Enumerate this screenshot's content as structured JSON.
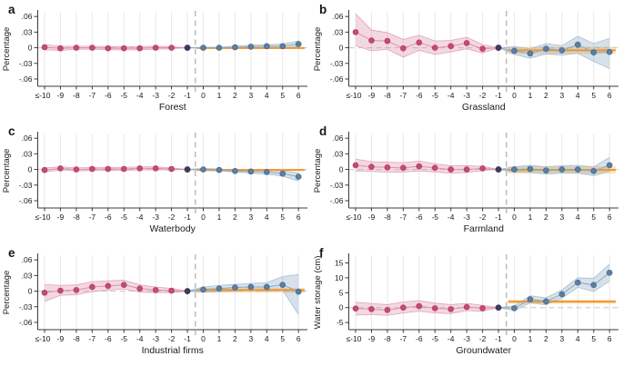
{
  "colors": {
    "background": "#ffffff",
    "axis": "#3a3a3a",
    "text": "#1a1a1a",
    "letter": "#17171c",
    "grid": "#e7e7e7",
    "zero_dash": "#c8c8c8",
    "event_dash": "#b3b3b3",
    "pre_point": "#c64a72",
    "pre_point_edge": "#a53a5e",
    "pre_line": "#d893a8",
    "pre_band_fill": "rgba(219,125,155,0.30)",
    "pre_band_edge": "#e3a4b7",
    "post_point": "#5b7fa3",
    "post_point_edge": "#41617f",
    "post_line": "#93a8bc",
    "post_band_fill": "rgba(120,155,188,0.30)",
    "post_band_edge": "#aabfd1",
    "ref_point": "#3e3a5e",
    "orange_line": "#f0952c",
    "orange_band_fill": "rgba(245,190,100,0.38)"
  },
  "chart_data": {
    "type": "line",
    "categories": [
      "≤-10",
      "-9",
      "-8",
      "-7",
      "-6",
      "-5",
      "-4",
      "-3",
      "-2",
      "-1",
      "0",
      "1",
      "2",
      "3",
      "4",
      "5",
      "6"
    ],
    "panels": [
      {
        "letter": "a",
        "xlabel": "Forest",
        "ylabel": "Percentage",
        "ylim": [
          -0.074,
          0.069
        ],
        "ytick_values": [
          0.06,
          0.03,
          0,
          -0.03,
          -0.06
        ],
        "ytick_labels": [
          ".06",
          ".03",
          "0",
          "-.03",
          "-.06"
        ],
        "pre": {
          "y": [
            0.001,
            -0.001,
            0,
            0,
            -0.001,
            -0.001,
            -0.001,
            0,
            0,
            0
          ],
          "lo": [
            -0.004,
            -0.005,
            -0.003,
            -0.003,
            -0.004,
            -0.004,
            -0.004,
            -0.003,
            -0.002,
            0
          ],
          "hi": [
            0.006,
            0.003,
            0.003,
            0.003,
            0.002,
            0.002,
            0.002,
            0.003,
            0.002,
            0
          ]
        },
        "post": {
          "y": [
            0,
            0,
            0,
            0.001,
            0.002,
            0.003,
            0.003,
            0.007
          ],
          "lo": [
            0,
            -0.001,
            -0.001,
            -0.001,
            -0.001,
            0,
            0,
            0.002
          ],
          "hi": [
            0,
            0.001,
            0.001,
            0.003,
            0.005,
            0.006,
            0.007,
            0.013
          ]
        },
        "benchmark": {
          "y": -0.0005,
          "lo": -0.002,
          "hi": 0.001
        }
      },
      {
        "letter": "b",
        "xlabel": "Grassland",
        "ylabel": "Percentage",
        "ylim": [
          -0.074,
          0.069
        ],
        "ytick_values": [
          0.06,
          0.03,
          0,
          -0.03,
          -0.06
        ],
        "ytick_labels": [
          ".06",
          ".03",
          "0",
          "-.03",
          "-.06"
        ],
        "pre": {
          "y": [
            0.03,
            0.014,
            0.013,
            -0.001,
            0.01,
            0,
            0.003,
            0.009,
            -0.002,
            0
          ],
          "lo": [
            0.004,
            -0.006,
            -0.003,
            -0.018,
            -0.005,
            -0.013,
            -0.008,
            -0.002,
            -0.01,
            0
          ],
          "hi": [
            0.065,
            0.034,
            0.029,
            0.016,
            0.024,
            0.013,
            0.014,
            0.02,
            0.006,
            0
          ]
        },
        "post": {
          "y": [
            0,
            -0.006,
            -0.011,
            -0.002,
            -0.005,
            0.006,
            -0.009,
            -0.008
          ],
          "lo": [
            0,
            -0.013,
            -0.02,
            -0.012,
            -0.014,
            -0.011,
            -0.026,
            -0.04
          ],
          "hi": [
            0,
            0.002,
            -0.002,
            0.008,
            0.004,
            0.022,
            0.008,
            0.018
          ]
        },
        "benchmark": {
          "y": -0.005,
          "lo": -0.012,
          "hi": 0.002
        }
      },
      {
        "letter": "c",
        "xlabel": "Waterbody",
        "ylabel": "Percentage",
        "ylim": [
          -0.074,
          0.069
        ],
        "ytick_values": [
          0.06,
          0.03,
          0,
          -0.03,
          -0.06
        ],
        "ytick_labels": [
          ".06",
          ".03",
          "0",
          "-.03",
          "-.06"
        ],
        "pre": {
          "y": [
            -0.001,
            0.002,
            0,
            0.001,
            0.001,
            0.001,
            0.002,
            0.002,
            0.001,
            0
          ],
          "lo": [
            -0.005,
            -0.001,
            -0.003,
            -0.002,
            -0.002,
            -0.002,
            -0.001,
            -0.001,
            -0.001,
            0
          ],
          "hi": [
            0.003,
            0.005,
            0.003,
            0.004,
            0.004,
            0.004,
            0.005,
            0.005,
            0.003,
            0
          ]
        },
        "post": {
          "y": [
            0,
            0,
            -0.001,
            -0.003,
            -0.004,
            -0.005,
            -0.008,
            -0.014
          ],
          "lo": [
            0,
            -0.002,
            -0.003,
            -0.005,
            -0.007,
            -0.009,
            -0.013,
            -0.022
          ],
          "hi": [
            0,
            0.002,
            0.001,
            -0.001,
            -0.001,
            -0.001,
            -0.003,
            -0.007
          ]
        },
        "benchmark": {
          "y": -0.001,
          "lo": -0.003,
          "hi": 0.001
        }
      },
      {
        "letter": "d",
        "xlabel": "Farmland",
        "ylabel": "Percentage",
        "ylim": [
          -0.074,
          0.069
        ],
        "ytick_values": [
          0.06,
          0.03,
          0,
          -0.03,
          -0.06
        ],
        "ytick_labels": [
          ".06",
          ".03",
          "0",
          "-.03",
          "-.06"
        ],
        "pre": {
          "y": [
            0.008,
            0.005,
            0.004,
            0.003,
            0.006,
            0.003,
            0,
            0,
            0.002,
            0
          ],
          "lo": [
            -0.003,
            -0.004,
            -0.005,
            -0.005,
            -0.003,
            -0.005,
            -0.007,
            -0.006,
            -0.002,
            0
          ],
          "hi": [
            0.02,
            0.015,
            0.014,
            0.013,
            0.016,
            0.011,
            0.007,
            0.007,
            0.006,
            0
          ]
        },
        "post": {
          "y": [
            0,
            0,
            0.001,
            -0.002,
            0,
            0,
            -0.003,
            0.008
          ],
          "lo": [
            0,
            -0.005,
            -0.006,
            -0.009,
            -0.007,
            -0.007,
            -0.012,
            -0.004
          ],
          "hi": [
            0,
            0.005,
            0.008,
            0.005,
            0.007,
            0.008,
            0.005,
            0.023
          ]
        },
        "benchmark": {
          "y": -0.001,
          "lo": -0.008,
          "hi": 0.006
        }
      },
      {
        "letter": "e",
        "xlabel": "Industrial firms",
        "ylabel": "Percentage",
        "ylim": [
          -0.074,
          0.069
        ],
        "ytick_values": [
          0.06,
          0.03,
          0,
          -0.03,
          -0.06
        ],
        "ytick_labels": [
          ".06",
          ".03",
          "0",
          "-.03",
          "-.06"
        ],
        "pre": {
          "y": [
            -0.003,
            0.001,
            0.002,
            0.008,
            0.01,
            0.012,
            0.005,
            0.002,
            0.001,
            0
          ],
          "lo": [
            -0.02,
            -0.008,
            -0.007,
            -0.001,
            0.002,
            0.004,
            -0.002,
            -0.003,
            -0.003,
            0
          ],
          "hi": [
            0.013,
            0.011,
            0.012,
            0.018,
            0.02,
            0.021,
            0.012,
            0.008,
            0.005,
            0
          ]
        },
        "post": {
          "y": [
            0,
            0.003,
            0.005,
            0.007,
            0.008,
            0.008,
            0.012,
            -0.001
          ],
          "lo": [
            0,
            -0.002,
            -0.001,
            0,
            0.001,
            0,
            0.002,
            -0.045
          ],
          "hi": [
            0,
            0.008,
            0.011,
            0.013,
            0.015,
            0.016,
            0.028,
            0.032
          ]
        },
        "benchmark": {
          "y": 0.002,
          "lo": -0.003,
          "hi": 0.006
        }
      },
      {
        "letter": "f",
        "xlabel": "Groundwater",
        "ylabel": "Water storage (cm)",
        "ylim": [
          -7.4,
          17.6
        ],
        "ytick_values": [
          15,
          10,
          5,
          0,
          -5
        ],
        "ytick_labels": [
          "15",
          "10",
          "5",
          "0",
          "-5"
        ],
        "pre": {
          "y": [
            -0.3,
            -0.5,
            -0.8,
            0,
            0.5,
            -0.2,
            -0.5,
            0.2,
            -0.2,
            0
          ],
          "lo": [
            -2.5,
            -2.3,
            -2.6,
            -1.8,
            -1.2,
            -1.8,
            -2.0,
            -1.0,
            -1.2,
            0
          ],
          "hi": [
            1.8,
            1.4,
            1.0,
            1.9,
            2.4,
            1.5,
            1.0,
            1.4,
            0.8,
            0
          ]
        },
        "post": {
          "y": [
            0,
            -0.2,
            2.8,
            2.1,
            4.5,
            8.4,
            7.6,
            11.7
          ],
          "lo": [
            0,
            -1.0,
            1.6,
            0.9,
            3.2,
            6.8,
            5.4,
            8.9
          ],
          "hi": [
            0,
            0.6,
            4.0,
            3.3,
            5.9,
            10.0,
            9.8,
            14.6
          ]
        },
        "benchmark": {
          "y": 2.0,
          "lo": 1.3,
          "hi": 2.7
        }
      }
    ]
  }
}
